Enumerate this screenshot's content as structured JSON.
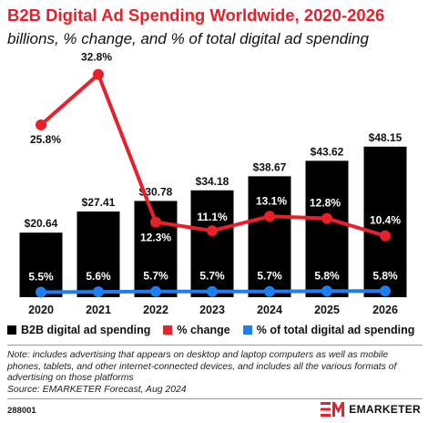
{
  "title": "B2B Digital Ad Spending Worldwide, 2020-2026",
  "subtitle": "billions, % change, and % of total digital ad spending",
  "legend": {
    "spending": "B2B digital ad spending",
    "change": "% change",
    "share": "% of total digital ad spending"
  },
  "colors": {
    "title": "#e8202a",
    "bars": "#000000",
    "change_line": "#e8202a",
    "share_line": "#1e7df0"
  },
  "note": "Note: includes advertising that appears on desktop and laptop computers as well as mobile phones, tablets, and other internet-connected devices, and includes all the various formats of advertising on those platforms",
  "source": "Source: EMARKETER Forecast, Aug 2024",
  "chart_id": "288001",
  "brand": {
    "name": "EMARKETER",
    "logo_text": "EM"
  },
  "chart_data": {
    "type": "bar",
    "categories": [
      "2020",
      "2021",
      "2022",
      "2023",
      "2024",
      "2025",
      "2026"
    ],
    "grid": false,
    "legend_position": "bottom",
    "series": [
      {
        "name": "B2B digital ad spending",
        "type": "bar",
        "unit": "billions",
        "values": [
          20.64,
          27.41,
          30.78,
          34.18,
          38.67,
          43.62,
          48.15
        ],
        "labels": [
          "$20.64",
          "$27.41",
          "$30.78",
          "$34.18",
          "$38.67",
          "$43.62",
          "$48.15"
        ]
      },
      {
        "name": "% change",
        "type": "line",
        "values": [
          25.8,
          32.8,
          12.3,
          11.1,
          13.1,
          12.8,
          10.4
        ],
        "labels": [
          "25.8%",
          "32.8%",
          "12.3%",
          "11.1%",
          "13.1%",
          "12.8%",
          "10.4%"
        ]
      },
      {
        "name": "% of total digital ad spending",
        "type": "line",
        "values": [
          5.5,
          5.6,
          5.7,
          5.7,
          5.7,
          5.8,
          5.8
        ],
        "labels": [
          "5.5%",
          "5.6%",
          "5.7%",
          "5.7%",
          "5.7%",
          "5.8%",
          "5.8%"
        ]
      }
    ]
  }
}
